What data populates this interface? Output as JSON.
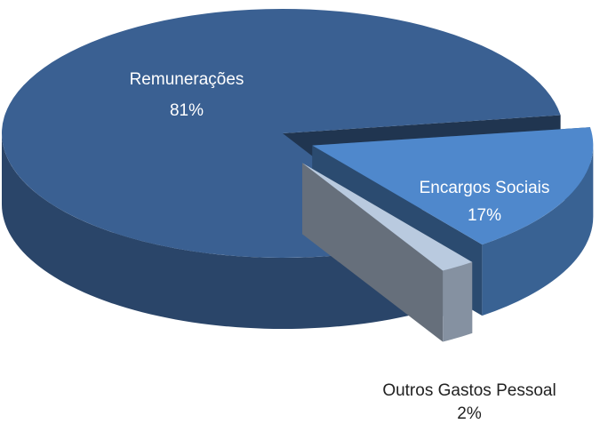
{
  "chart_data": {
    "type": "pie",
    "categories": [
      "Remunerações",
      "Encargos Sociais",
      "Outros Gastos Pessoal"
    ],
    "values": [
      81,
      17,
      2
    ],
    "value_labels": [
      "81%",
      "17%",
      "2%"
    ],
    "colors": [
      "#3a6092",
      "#4f88cc",
      "#b9cadf"
    ]
  }
}
